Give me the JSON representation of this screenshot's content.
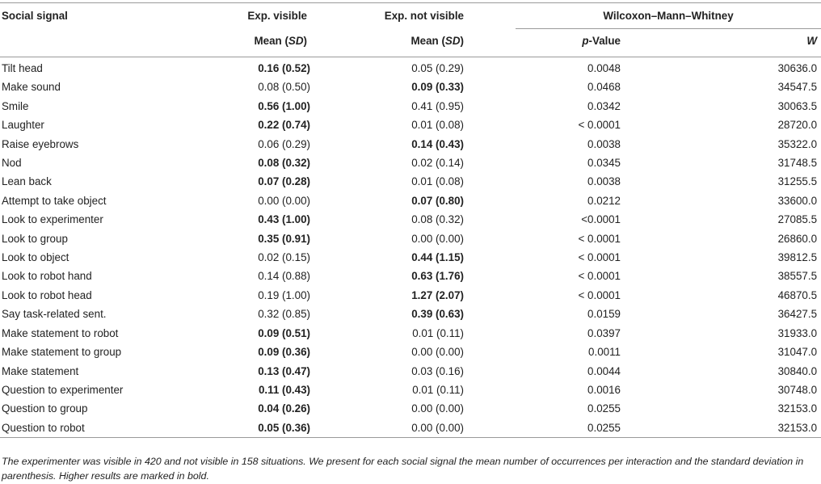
{
  "headers": {
    "col1": "Social signal",
    "col2": "Exp. visible",
    "col3": "Exp. not visible",
    "col45": "Wilcoxon–Mann–Whitney",
    "mean_prefix": "Mean (",
    "sd": "SD",
    "mean_suffix": ")",
    "p": "p",
    "pvalue_suffix": "-Value",
    "w": "W"
  },
  "rows": [
    {
      "signal": "Tilt head",
      "vis": "0.16 (0.52)",
      "vis_bold": true,
      "notvis": "0.05 (0.29)",
      "notvis_bold": false,
      "p": "0.0048",
      "w": "30636.0"
    },
    {
      "signal": "Make sound",
      "vis": "0.08 (0.50)",
      "vis_bold": false,
      "notvis": "0.09 (0.33)",
      "notvis_bold": true,
      "p": "0.0468",
      "w": "34547.5"
    },
    {
      "signal": "Smile",
      "vis": "0.56 (1.00)",
      "vis_bold": true,
      "notvis": "0.41 (0.95)",
      "notvis_bold": false,
      "p": "0.0342",
      "w": "30063.5"
    },
    {
      "signal": "Laughter",
      "vis": "0.22 (0.74)",
      "vis_bold": true,
      "notvis": "0.01 (0.08)",
      "notvis_bold": false,
      "p": "< 0.0001",
      "w": "28720.0"
    },
    {
      "signal": "Raise eyebrows",
      "vis": "0.06 (0.29)",
      "vis_bold": false,
      "notvis": "0.14 (0.43)",
      "notvis_bold": true,
      "p": "0.0038",
      "w": "35322.0"
    },
    {
      "signal": "Nod",
      "vis": "0.08 (0.32)",
      "vis_bold": true,
      "notvis": "0.02 (0.14)",
      "notvis_bold": false,
      "p": "0.0345",
      "w": "31748.5"
    },
    {
      "signal": "Lean back",
      "vis": "0.07 (0.28)",
      "vis_bold": true,
      "notvis": "0.01 (0.08)",
      "notvis_bold": false,
      "p": "0.0038",
      "w": "31255.5"
    },
    {
      "signal": "Attempt to take object",
      "vis": "0.00 (0.00)",
      "vis_bold": false,
      "notvis": "0.07 (0.80)",
      "notvis_bold": true,
      "p": "0.0212",
      "w": "33600.0"
    },
    {
      "signal": "Look to experimenter",
      "vis": "0.43 (1.00)",
      "vis_bold": true,
      "notvis": "0.08 (0.32)",
      "notvis_bold": false,
      "p": "<0.0001",
      "w": "27085.5"
    },
    {
      "signal": "Look to group",
      "vis": "0.35 (0.91)",
      "vis_bold": true,
      "notvis": "0.00 (0.00)",
      "notvis_bold": false,
      "p": "< 0.0001",
      "w": "26860.0"
    },
    {
      "signal": "Look to object",
      "vis": "0.02 (0.15)",
      "vis_bold": false,
      "notvis": "0.44 (1.15)",
      "notvis_bold": true,
      "p": "< 0.0001",
      "w": "39812.5"
    },
    {
      "signal": "Look to robot hand",
      "vis": "0.14 (0.88)",
      "vis_bold": false,
      "notvis": "0.63 (1.76)",
      "notvis_bold": true,
      "p": "< 0.0001",
      "w": "38557.5"
    },
    {
      "signal": "Look to robot head",
      "vis": "0.19 (1.00)",
      "vis_bold": false,
      "notvis": "1.27 (2.07)",
      "notvis_bold": true,
      "p": "< 0.0001",
      "w": "46870.5"
    },
    {
      "signal": "Say task-related sent.",
      "vis": "0.32 (0.85)",
      "vis_bold": false,
      "notvis": "0.39 (0.63)",
      "notvis_bold": true,
      "p": "0.0159",
      "w": "36427.5"
    },
    {
      "signal": "Make statement to robot",
      "vis": "0.09 (0.51)",
      "vis_bold": true,
      "notvis": "0.01 (0.11)",
      "notvis_bold": false,
      "p": "0.0397",
      "w": "31933.0"
    },
    {
      "signal": "Make statement to group",
      "vis": "0.09 (0.36)",
      "vis_bold": true,
      "notvis": "0.00 (0.00)",
      "notvis_bold": false,
      "p": "0.0011",
      "w": "31047.0"
    },
    {
      "signal": "Make statement",
      "vis": "0.13 (0.47)",
      "vis_bold": true,
      "notvis": "0.03 (0.16)",
      "notvis_bold": false,
      "p": "0.0044",
      "w": "30840.0"
    },
    {
      "signal": "Question to experimenter",
      "vis": "0.11 (0.43)",
      "vis_bold": true,
      "notvis": "0.01 (0.11)",
      "notvis_bold": false,
      "p": "0.0016",
      "w": "30748.0"
    },
    {
      "signal": "Question to group",
      "vis": "0.04 (0.26)",
      "vis_bold": true,
      "notvis": "0.00 (0.00)",
      "notvis_bold": false,
      "p": "0.0255",
      "w": "32153.0"
    },
    {
      "signal": "Question to robot",
      "vis": "0.05 (0.36)",
      "vis_bold": true,
      "notvis": "0.00 (0.00)",
      "notvis_bold": false,
      "p": "0.0255",
      "w": "32153.0"
    }
  ],
  "footnote": "The experimenter was visible in 420 and not visible in 158 situations. We present for each social signal the mean number of occurrences per interaction and the standard deviation in parenthesis. Higher results are marked in bold."
}
